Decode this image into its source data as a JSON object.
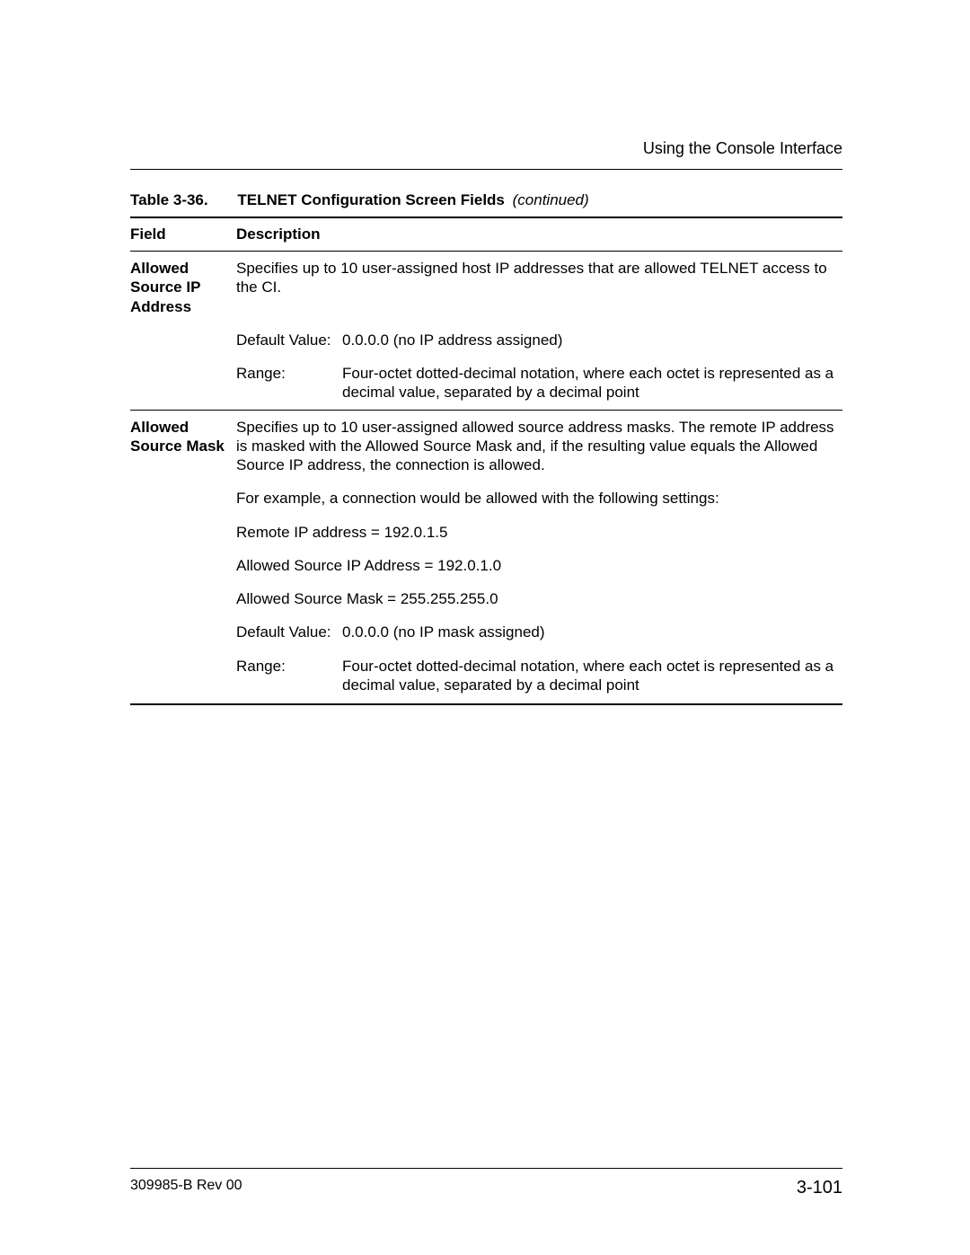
{
  "header": {
    "running_title": "Using the Console Interface"
  },
  "table_caption": {
    "number": "Table 3-36.",
    "title": "TELNET Configuration Screen Fields",
    "continued": "(continued)"
  },
  "columns": {
    "field": "Field",
    "description": "Description"
  },
  "labels": {
    "default_value": "Default Value:",
    "range": "Range:"
  },
  "rows": [
    {
      "field": "Allowed Source IP Address",
      "desc_para": "Specifies up to 10 user-assigned host IP addresses that are allowed TELNET access to the CI.",
      "default_value": "0.0.0.0 (no IP address assigned)",
      "range": "Four-octet dotted-decimal notation, where each octet is represented as a decimal value, separated by a decimal point"
    },
    {
      "field": "Allowed Source Mask",
      "desc_paras": [
        "Specifies up to 10 user-assigned allowed source address masks. The remote IP address is masked with the Allowed Source Mask and, if the resulting value equals the Allowed Source IP address, the connection is allowed.",
        "For example, a connection would be allowed with the following settings:",
        "Remote IP address = 192.0.1.5",
        "Allowed Source IP Address = 192.0.1.0",
        "Allowed Source Mask = 255.255.255.0"
      ],
      "default_value": "0.0.0.0 (no IP mask assigned)",
      "range": "Four-octet dotted-decimal notation, where each octet is represented as a decimal value, separated by a decimal point"
    }
  ],
  "footer": {
    "doc_id": "309985-B Rev 00",
    "page": "3-101"
  }
}
